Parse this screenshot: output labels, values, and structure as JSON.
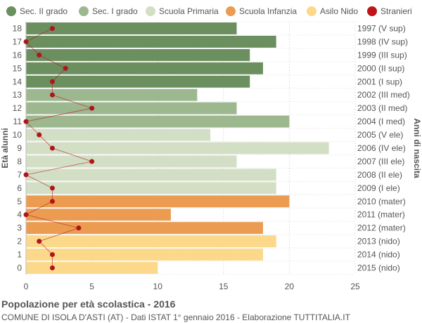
{
  "chart_data": {
    "type": "bar",
    "orientation": "horizontal",
    "ylabel": "Età alunni",
    "ylabel_right": "Anni di nascita",
    "xlim": [
      0,
      25
    ],
    "xticks": [
      0,
      5,
      10,
      15,
      20,
      25
    ],
    "grid": true,
    "legend_position": "top",
    "legend": [
      {
        "name": "Sec. II grado",
        "color": "#6b8f5e"
      },
      {
        "name": "Sec. I grado",
        "color": "#9db88f"
      },
      {
        "name": "Scuola Primaria",
        "color": "#d3dfc5"
      },
      {
        "name": "Scuola Infanzia",
        "color": "#eb9c51"
      },
      {
        "name": "Asilo Nido",
        "color": "#fcd98a"
      },
      {
        "name": "Stranieri",
        "color": "#c0141a"
      }
    ],
    "rows": [
      {
        "age": "18",
        "birth": "1997 (V sup)",
        "value": 16,
        "stranieri": 2,
        "group": 0
      },
      {
        "age": "17",
        "birth": "1998 (IV sup)",
        "value": 19,
        "stranieri": 0,
        "group": 0
      },
      {
        "age": "16",
        "birth": "1999 (III sup)",
        "value": 17,
        "stranieri": 1,
        "group": 0
      },
      {
        "age": "15",
        "birth": "2000 (II sup)",
        "value": 18,
        "stranieri": 3,
        "group": 0
      },
      {
        "age": "14",
        "birth": "2001 (I sup)",
        "value": 17,
        "stranieri": 2,
        "group": 0
      },
      {
        "age": "13",
        "birth": "2002 (III med)",
        "value": 13,
        "stranieri": 2,
        "group": 1
      },
      {
        "age": "12",
        "birth": "2003 (II med)",
        "value": 16,
        "stranieri": 5,
        "group": 1
      },
      {
        "age": "11",
        "birth": "2004 (I med)",
        "value": 20,
        "stranieri": 0,
        "group": 1
      },
      {
        "age": "10",
        "birth": "2005 (V ele)",
        "value": 14,
        "stranieri": 1,
        "group": 2
      },
      {
        "age": "9",
        "birth": "2006 (IV ele)",
        "value": 23,
        "stranieri": 2,
        "group": 2
      },
      {
        "age": "8",
        "birth": "2007 (III ele)",
        "value": 16,
        "stranieri": 5,
        "group": 2
      },
      {
        "age": "7",
        "birth": "2008 (II ele)",
        "value": 19,
        "stranieri": 0,
        "group": 2
      },
      {
        "age": "6",
        "birth": "2009 (I ele)",
        "value": 19,
        "stranieri": 2,
        "group": 2
      },
      {
        "age": "5",
        "birth": "2010 (mater)",
        "value": 20,
        "stranieri": 2,
        "group": 3
      },
      {
        "age": "4",
        "birth": "2011 (mater)",
        "value": 11,
        "stranieri": 0,
        "group": 3
      },
      {
        "age": "3",
        "birth": "2012 (mater)",
        "value": 18,
        "stranieri": 4,
        "group": 3
      },
      {
        "age": "2",
        "birth": "2013 (nido)",
        "value": 19,
        "stranieri": 1,
        "group": 4
      },
      {
        "age": "1",
        "birth": "2014 (nido)",
        "value": 18,
        "stranieri": 2,
        "group": 4
      },
      {
        "age": "0",
        "birth": "2015 (nido)",
        "value": 10,
        "stranieri": 2,
        "group": 4
      }
    ]
  },
  "footer": {
    "title": "Popolazione per età scolastica - 2016",
    "subtitle": "COMUNE DI ISOLA D'ASTI (AT) - Dati ISTAT 1° gennaio 2016 - Elaborazione TUTTITALIA.IT"
  }
}
